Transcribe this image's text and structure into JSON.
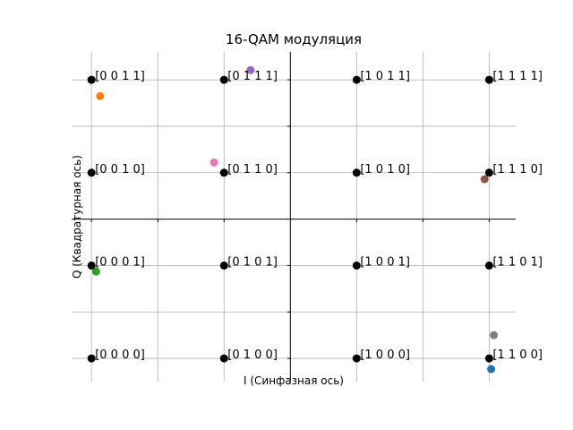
{
  "chart_data": {
    "type": "scatter",
    "title": "16-QAM модуляция",
    "xlabel": "I (Синфазная ось)",
    "ylabel": "Q (Квадратурная ось)",
    "xlim": [
      -3.3,
      3.4
    ],
    "ylim": [
      -3.5,
      3.6
    ],
    "grid": true,
    "legend": "none",
    "constellation": [
      {
        "x": -3,
        "y": 3,
        "label": "[0 0 1 1]"
      },
      {
        "x": -1,
        "y": 3,
        "label": "[0 1 1 1]"
      },
      {
        "x": 1,
        "y": 3,
        "label": "[1 0 1 1]"
      },
      {
        "x": 3,
        "y": 3,
        "label": "[1 1 1 1]"
      },
      {
        "x": -3,
        "y": 1,
        "label": "[0 0 1 0]"
      },
      {
        "x": -1,
        "y": 1,
        "label": "[0 1 1 0]"
      },
      {
        "x": 1,
        "y": 1,
        "label": "[1 0 1 0]"
      },
      {
        "x": 3,
        "y": 1,
        "label": "[1 1 1 0]"
      },
      {
        "x": -3,
        "y": -1,
        "label": "[0 0 0 1]"
      },
      {
        "x": -1,
        "y": -1,
        "label": "[0 1 0 1]"
      },
      {
        "x": 1,
        "y": -1,
        "label": "[1 0 0 1]"
      },
      {
        "x": 3,
        "y": -1,
        "label": "[1 1 0 1]"
      },
      {
        "x": -3,
        "y": -3,
        "label": "[0 0 0 0]"
      },
      {
        "x": -1,
        "y": -3,
        "label": "[0 1 0 0]"
      },
      {
        "x": 1,
        "y": -3,
        "label": "[1 0 0 0]"
      },
      {
        "x": 3,
        "y": -3,
        "label": "[1 1 0 0]"
      }
    ],
    "received": [
      {
        "x": 3.03,
        "y": -3.23,
        "color": "#1f77b4"
      },
      {
        "x": -2.87,
        "y": 2.65,
        "color": "#ff7f0e"
      },
      {
        "x": -2.93,
        "y": -1.13,
        "color": "#2ca02c"
      },
      {
        "x": -3.0,
        "y": 3.0,
        "color": "#d62728"
      },
      {
        "x": -0.6,
        "y": 3.21,
        "color": "#9467bd"
      },
      {
        "x": 2.93,
        "y": 0.86,
        "color": "#8c564b"
      },
      {
        "x": -1.15,
        "y": 1.22,
        "color": "#e377c2"
      },
      {
        "x": 3.07,
        "y": -2.5,
        "color": "#7f7f7f"
      }
    ],
    "constellation_color": "#000000"
  }
}
